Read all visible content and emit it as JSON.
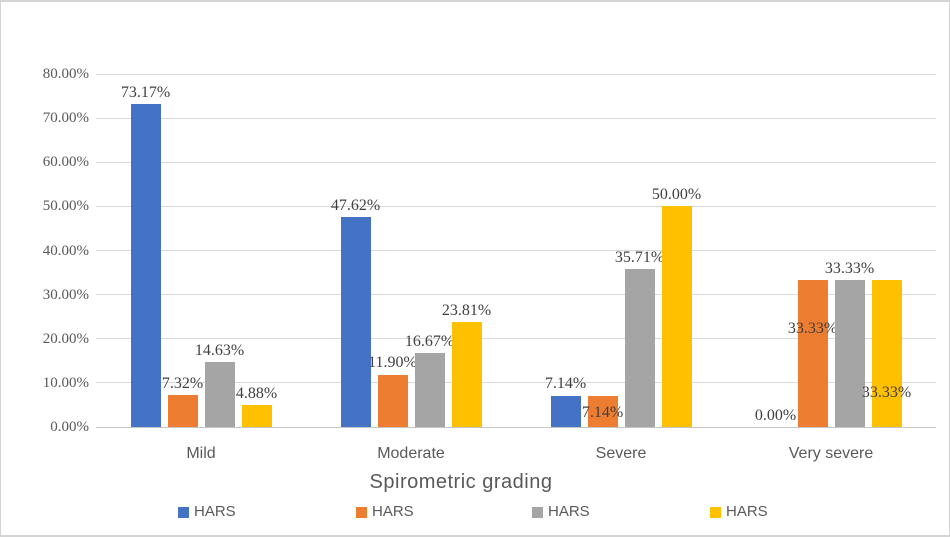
{
  "chart_data": {
    "type": "bar",
    "title": "",
    "xlabel": "Spirometric grading",
    "ylabel": "",
    "categories": [
      "Mild",
      "Moderate",
      "Severe",
      "Very severe"
    ],
    "series": [
      {
        "name": "HARS",
        "color": "#4472C4",
        "values": [
          73.17,
          47.62,
          7.14,
          0.0
        ]
      },
      {
        "name": "HARS",
        "color": "#ED7D31",
        "values": [
          7.32,
          11.9,
          7.14,
          33.33
        ]
      },
      {
        "name": "HARS",
        "color": "#A5A5A5",
        "values": [
          14.63,
          16.67,
          35.71,
          33.33
        ]
      },
      {
        "name": "HARS",
        "color": "#FFC000",
        "values": [
          4.88,
          23.81,
          50.0,
          33.33
        ]
      }
    ],
    "data_label_format": "0.00%",
    "y_ticks": [
      "0.00%",
      "10.00%",
      "20.00%",
      "30.00%",
      "40.00%",
      "50.00%",
      "60.00%",
      "70.00%",
      "80.00%"
    ],
    "ylim": [
      0,
      80
    ],
    "grid": true,
    "legend_position": "bottom",
    "label_offsets": [
      {
        "series": 1,
        "category": 2,
        "dy": 29
      },
      {
        "series": 1,
        "category": 3,
        "dy": 60
      },
      {
        "series": 3,
        "category": 3,
        "dy": 124
      }
    ],
    "colors": {
      "gridline": "#d9d9d9",
      "axis_text": "#595959",
      "data_label_text": "#3f3f3f",
      "border": "#d4d4d4"
    }
  }
}
